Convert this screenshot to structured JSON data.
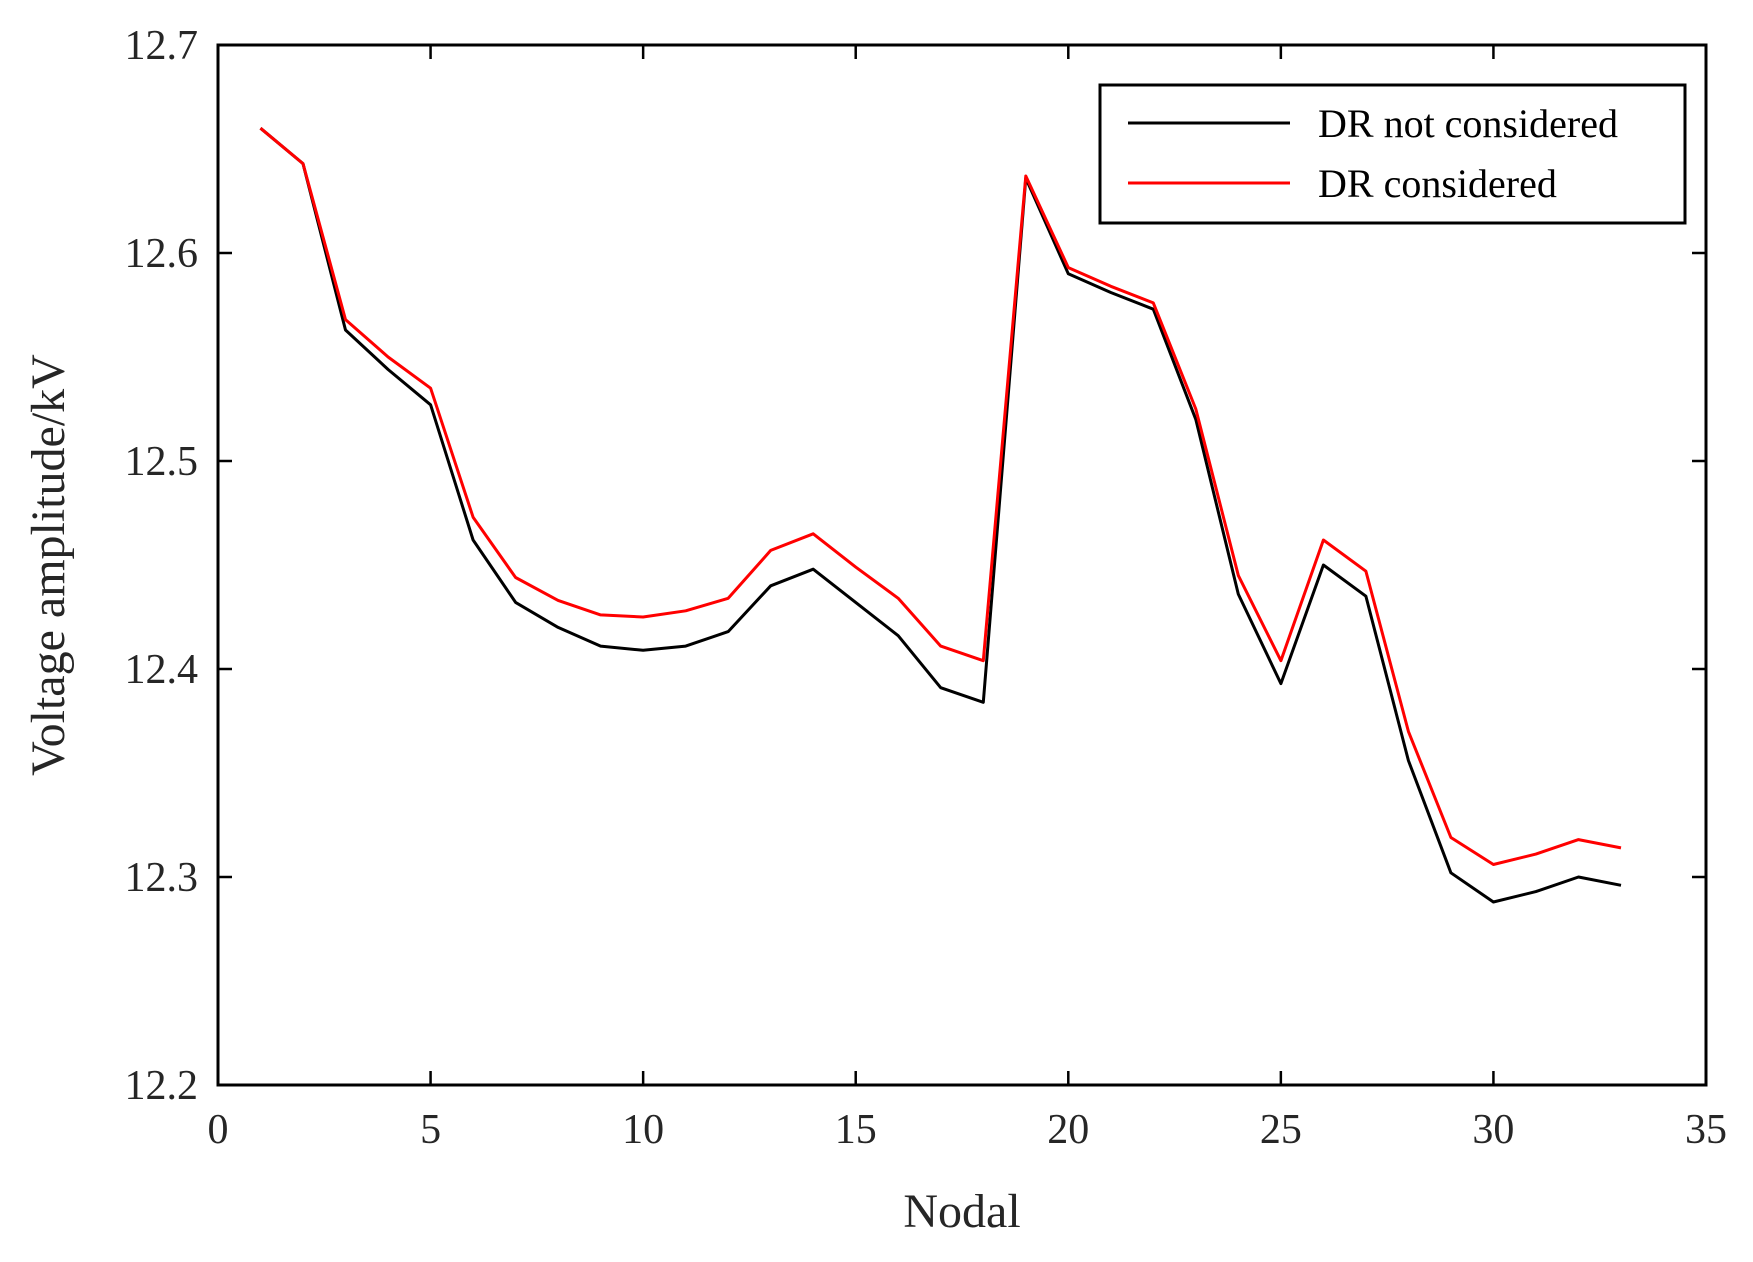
{
  "chart_data": {
    "type": "line",
    "title": "",
    "xlabel": "Nodal",
    "ylabel": "Voltage amplitude/kV",
    "xlim": [
      0,
      35
    ],
    "ylim": [
      12.2,
      12.7
    ],
    "xticks": [
      0,
      5,
      10,
      15,
      20,
      25,
      30,
      35
    ],
    "yticks": [
      12.2,
      12.3,
      12.4,
      12.5,
      12.6,
      12.7
    ],
    "xtick_labels": [
      "0",
      "5",
      "10",
      "15",
      "20",
      "25",
      "30",
      "35"
    ],
    "ytick_labels": [
      "12.2",
      "12.3",
      "12.4",
      "12.5",
      "12.6",
      "12.7"
    ],
    "grid": false,
    "legend_position": "top-right",
    "x": [
      1,
      2,
      3,
      4,
      5,
      6,
      7,
      8,
      9,
      10,
      11,
      12,
      13,
      14,
      15,
      16,
      17,
      18,
      19,
      20,
      21,
      22,
      23,
      24,
      25,
      26,
      27,
      28,
      29,
      30,
      31,
      32,
      33
    ],
    "series": [
      {
        "name": "DR not considered",
        "color": "#000000",
        "values": [
          12.66,
          12.643,
          12.563,
          12.544,
          12.527,
          12.462,
          12.432,
          12.42,
          12.411,
          12.409,
          12.411,
          12.418,
          12.44,
          12.448,
          12.432,
          12.416,
          12.391,
          12.384,
          12.636,
          12.59,
          12.581,
          12.573,
          12.52,
          12.436,
          12.393,
          12.45,
          12.435,
          12.356,
          12.302,
          12.288,
          12.293,
          12.3,
          12.296
        ]
      },
      {
        "name": "DR considered",
        "color": "#ff0000",
        "values": [
          12.66,
          12.643,
          12.568,
          12.55,
          12.535,
          12.473,
          12.444,
          12.433,
          12.426,
          12.425,
          12.428,
          12.434,
          12.457,
          12.465,
          12.449,
          12.434,
          12.411,
          12.404,
          12.637,
          12.593,
          12.584,
          12.576,
          12.525,
          12.445,
          12.404,
          12.462,
          12.447,
          12.37,
          12.319,
          12.306,
          12.311,
          12.318,
          12.314
        ]
      }
    ]
  }
}
